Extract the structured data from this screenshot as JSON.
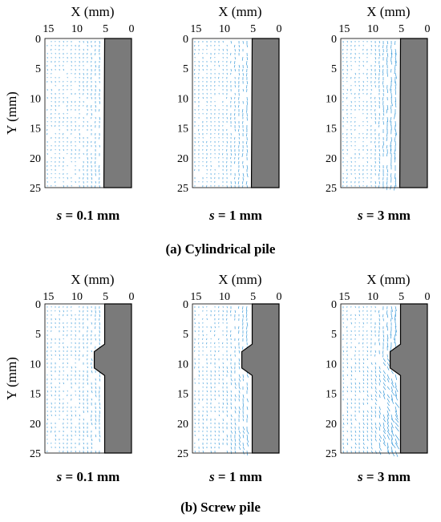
{
  "rows": [
    {
      "caption": "(a) Cylindrical pile",
      "pile_shape": "cylindrical",
      "panels": [
        {
          "x_axis_label": "X (mm)",
          "y_axis_label": "Y (mm)",
          "caption_var": "s",
          "caption_rest": " = 0.1 mm",
          "displacement_mm": 0.1
        },
        {
          "x_axis_label": "X (mm)",
          "y_axis_label": "",
          "caption_var": "s",
          "caption_rest": " = 1 mm",
          "displacement_mm": 1
        },
        {
          "x_axis_label": "X (mm)",
          "y_axis_label": "",
          "caption_var": "s",
          "caption_rest": " = 3 mm",
          "displacement_mm": 3
        }
      ]
    },
    {
      "caption": "(b) Screw pile",
      "pile_shape": "screw",
      "panels": [
        {
          "x_axis_label": "X (mm)",
          "y_axis_label": "Y (mm)",
          "caption_var": "s",
          "caption_rest": " = 0.1 mm",
          "displacement_mm": 0.1
        },
        {
          "x_axis_label": "X (mm)",
          "y_axis_label": "",
          "caption_var": "s",
          "caption_rest": " = 1 mm",
          "displacement_mm": 1
        },
        {
          "x_axis_label": "X (mm)",
          "y_axis_label": "",
          "caption_var": "s",
          "caption_rest": " = 3 mm",
          "displacement_mm": 3
        }
      ]
    }
  ],
  "axes": {
    "x_ticks": [
      "15",
      "10",
      "5",
      "0"
    ],
    "y_ticks": [
      "0",
      "5",
      "10",
      "15",
      "20",
      "25"
    ],
    "x_range_mm": [
      15,
      0
    ],
    "y_range_mm": [
      0,
      25
    ]
  },
  "colors": {
    "vector": "#3a9ad9",
    "pile": "#7a7a7a"
  }
}
